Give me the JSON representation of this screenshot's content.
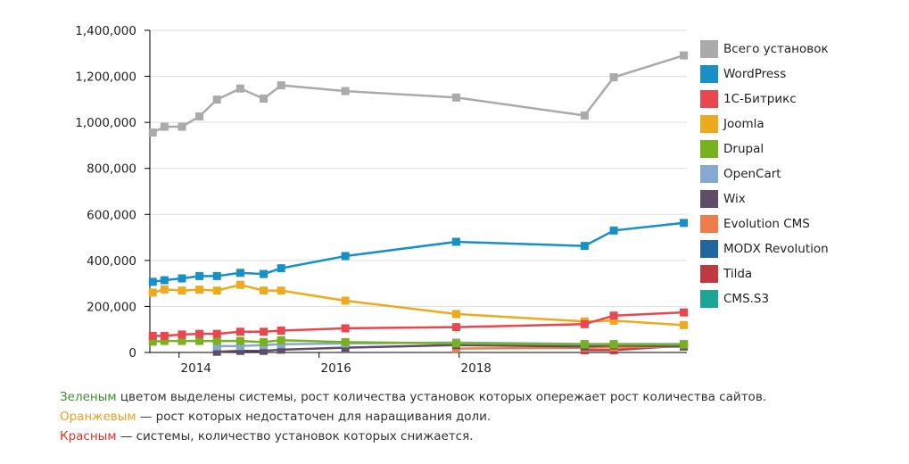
{
  "chart_data": {
    "type": "line",
    "title": "",
    "xlabel": "",
    "ylabel": "",
    "ylim": [
      0,
      1400000
    ],
    "yticks": [
      "0",
      "200,000",
      "400,000",
      "600,000",
      "800,000",
      "1,000,000",
      "1,200,000",
      "1,400,000"
    ],
    "ytick_values": [
      0,
      200000,
      400000,
      600000,
      800000,
      1000000,
      1200000,
      1400000
    ],
    "xticks": [
      "2014",
      "2016",
      "2018"
    ],
    "grid": "horizontal",
    "legend_position": "right",
    "x": [
      "2013-08",
      "2013-10",
      "2014-01",
      "2014-04",
      "2014-07",
      "2014-11",
      "2015-03",
      "2015-06",
      "2016-05",
      "2017-12",
      "2019-10",
      "2020-03",
      "2021-03"
    ],
    "series": [
      {
        "name": "Всего установок",
        "color": "#aaaaaa",
        "values": [
          956000,
          981000,
          981000,
          1026000,
          1099000,
          1147000,
          1103000,
          1161000,
          1136000,
          1108000,
          1030000,
          1196000,
          1291000
        ]
      },
      {
        "name": "WordPress",
        "color": "#1790c8",
        "values": [
          307000,
          314000,
          322000,
          332000,
          332000,
          346000,
          341000,
          366000,
          419000,
          481000,
          463000,
          530000,
          563000
        ]
      },
      {
        "name": "1С-Битрикс",
        "color": "#e8474f",
        "values": [
          72000,
          72000,
          78000,
          81000,
          81000,
          90000,
          90000,
          95000,
          105000,
          110000,
          123000,
          160000,
          174000
        ]
      },
      {
        "name": "Joomla",
        "color": "#edaa1e",
        "values": [
          260000,
          274000,
          269000,
          273000,
          269000,
          294000,
          269000,
          269000,
          225000,
          167000,
          135000,
          138000,
          119000
        ]
      },
      {
        "name": "Drupal",
        "color": "#78b11f",
        "values": [
          47000,
          50000,
          50000,
          50000,
          50000,
          50000,
          45000,
          53000,
          45000,
          39000,
          35000,
          35000,
          34000
        ]
      },
      {
        "name": "OpenCart",
        "color": "#85a9cf",
        "values": [
          null,
          null,
          null,
          null,
          27000,
          28000,
          32000,
          36000,
          39000,
          43000,
          37000,
          37000,
          37000
        ]
      },
      {
        "name": "Wix",
        "color": "#5e4c68",
        "values": [
          null,
          null,
          null,
          null,
          3000,
          7000,
          7000,
          12000,
          21000,
          32000,
          26000,
          31000,
          26000
        ]
      },
      {
        "name": "Evolution CMS",
        "color": "#ee7d4b",
        "values": [
          null,
          null,
          null,
          null,
          null,
          null,
          null,
          null,
          null,
          17000,
          20000,
          22000,
          26000
        ]
      },
      {
        "name": "MODX Revolution",
        "color": "#2265a0",
        "values": [
          null,
          null,
          null,
          null,
          null,
          null,
          null,
          null,
          null,
          35000,
          28000,
          31000,
          33000
        ]
      },
      {
        "name": "Tilda",
        "color": "#c0393f",
        "values": [
          null,
          null,
          null,
          null,
          null,
          null,
          null,
          null,
          null,
          null,
          10000,
          10000,
          30000
        ]
      },
      {
        "name": "CMS.S3",
        "color": "#1aa594",
        "values": [
          null,
          null,
          null,
          null,
          null,
          null,
          null,
          null,
          null,
          null,
          null,
          null,
          37000
        ]
      }
    ]
  },
  "notes": {
    "line1_highlight": "Зеленым",
    "line1_rest": " цветом выделены системы, рост количества установок которых опережает рост количества сайтов.",
    "line2_highlight": "Оранжевым",
    "line2_rest": " — рост которых недостаточен для наращивания доли.",
    "line3_highlight": "Красным",
    "line3_rest": " — системы, количество установок которых снижается.",
    "colors": {
      "green": "#3d8f2a",
      "orange": "#eea020",
      "red": "#d9342f"
    }
  }
}
